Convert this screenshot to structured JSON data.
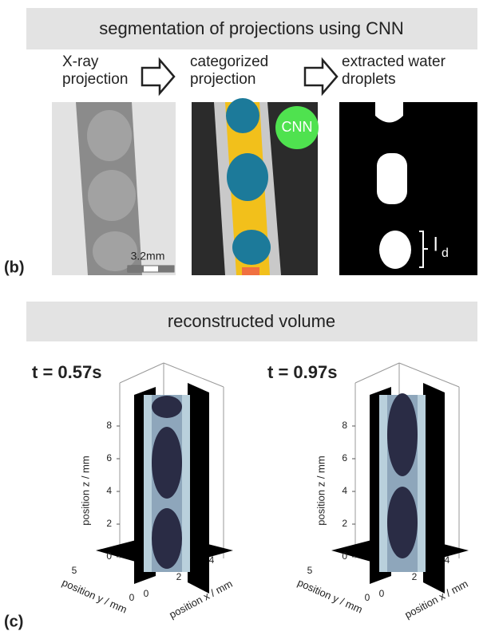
{
  "top": {
    "banner": "segmentation of projections using CNN",
    "panels": [
      {
        "title": [
          "X-ray",
          "projection"
        ],
        "scale_bar": "3.2mm"
      },
      {
        "title": [
          "categorized",
          "projection"
        ],
        "badge": "CNN"
      },
      {
        "title": [
          "extracted water",
          "droplets"
        ],
        "annotation": {
          "main": "l",
          "sub": "d"
        }
      }
    ],
    "label": "(b)"
  },
  "bottom": {
    "banner": "reconstructed volume",
    "label": "(c)",
    "plots": [
      {
        "title": "t = 0.57s",
        "zlabel": "position z / mm",
        "ylabel": "position y / mm",
        "xlabel": "position x / mm",
        "zticks": [
          0,
          2,
          4,
          6,
          8
        ],
        "yticks": [
          0,
          5
        ],
        "xticks": [
          0,
          2,
          4
        ]
      },
      {
        "title": "t = 0.97s",
        "zlabel": "position z / mm",
        "ylabel": "position y / mm",
        "xlabel": "position x / mm",
        "zticks": [
          0,
          2,
          4,
          6,
          8
        ],
        "yticks": [
          0,
          5
        ],
        "xticks": [
          0,
          2,
          4
        ]
      }
    ]
  }
}
